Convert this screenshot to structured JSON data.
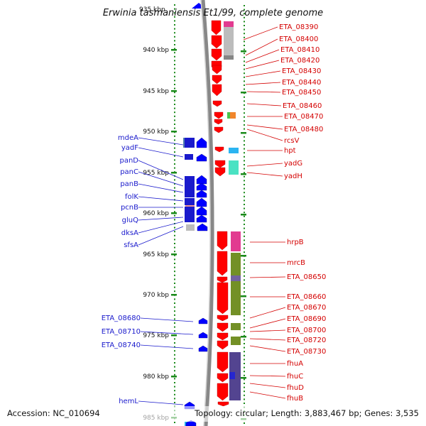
{
  "title": "Erwinia tasmaniensis Et1/99, complete genome",
  "footer": {
    "accession": "Accession: NC_010694",
    "summary": "Topology: circular; Length: 3,883,467 bp; Genes: 3,535"
  },
  "top_cut_label": "935 kbp",
  "ticks": [
    "940 kbp",
    "945 kbp",
    "950 kbp",
    "955 kbp",
    "960 kbp",
    "965 kbp",
    "970 kbp",
    "975 kbp",
    "980 kbp",
    "985 kbp"
  ],
  "left_genes": [
    "mdeA",
    "yadF",
    "panD",
    "panC",
    "panB",
    "folK",
    "pcnB",
    "gluQ",
    "dksA",
    "sfsA",
    "ETA_08680",
    "ETA_08710",
    "ETA_08740",
    "hemL"
  ],
  "right_genes": [
    "ETA_08390",
    "ETA_08400",
    "ETA_08410",
    "ETA_08420",
    "ETA_08430",
    "ETA_08440",
    "ETA_08450",
    "ETA_08460",
    "ETA_08470",
    "ETA_08480",
    "rcsV",
    "hpt",
    "yadG",
    "yadH",
    "hrpB",
    "mrcB",
    "ETA_08650",
    "ETA_08660",
    "ETA_08670",
    "ETA_08690",
    "ETA_08700",
    "ETA_08720",
    "ETA_08730",
    "fhuA",
    "fhuC",
    "fhuD",
    "fhuB"
  ],
  "colors": {
    "forward_strand": "#ff0000",
    "reverse_strand": "#0000ff",
    "left_label": "#1a1acc",
    "right_label": "#d40000",
    "backbone": "#888888",
    "tick": "#1a8a1a",
    "cog_pink": "#e0308a",
    "cog_gray": "#b8b8b8",
    "cog_olive": "#6b8a1a",
    "cog_teal": "#40e0c0",
    "cog_navy": "#4a3a8a",
    "cog_sky": "#20b0f0",
    "cog_salmon": "#f09090",
    "cog_green": "#40c040",
    "cog_orange": "#f08020",
    "cog_steel": "#4a7aaa"
  }
}
